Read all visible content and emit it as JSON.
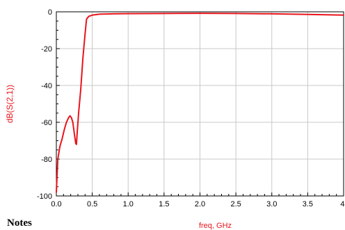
{
  "chart_data": {
    "type": "line",
    "xlabel": "freq, GHz",
    "ylabel": "dB(S(2,1))",
    "xlim": [
      0.0,
      4.0
    ],
    "ylim": [
      -100,
      0
    ],
    "x_ticks": [
      "0.0",
      "0.5",
      "1.0",
      "1.5",
      "2.0",
      "2.5",
      "3.0",
      "3.5",
      "4."
    ],
    "x_tick_values": [
      0.0,
      0.5,
      1.0,
      1.5,
      2.0,
      2.5,
      3.0,
      3.5,
      4.0
    ],
    "y_ticks": [
      "0",
      "-20",
      "-40",
      "-60",
      "-80",
      "-100"
    ],
    "y_tick_values": [
      0,
      -20,
      -40,
      -60,
      -80,
      -100
    ],
    "grid": true,
    "series": [
      {
        "color": "#e8141b",
        "x": [
          0.0,
          0.02,
          0.05,
          0.08,
          0.11,
          0.14,
          0.17,
          0.19,
          0.21,
          0.23,
          0.25,
          0.27,
          0.28,
          0.29,
          0.31,
          0.34,
          0.37,
          0.4,
          0.42,
          0.45,
          0.5,
          0.6,
          0.8,
          1.0,
          1.5,
          2.0,
          2.5,
          3.0,
          3.5,
          4.0
        ],
        "y": [
          -98,
          -80,
          -73,
          -69,
          -64,
          -60,
          -57.5,
          -56.5,
          -57.5,
          -60,
          -66,
          -71.5,
          -72,
          -66,
          -55,
          -42,
          -25,
          -12,
          -4,
          -2.5,
          -1.8,
          -1.3,
          -1.1,
          -1.0,
          -0.9,
          -0.8,
          -0.9,
          -1.1,
          -1.4,
          -1.8
        ]
      }
    ],
    "colors": {
      "curve": "#e8141b",
      "y_label": "#e8141b",
      "x_label": "#e8141b",
      "grid": "#c8c8c8",
      "axis": "#000000"
    }
  },
  "notes_text": "Notes"
}
